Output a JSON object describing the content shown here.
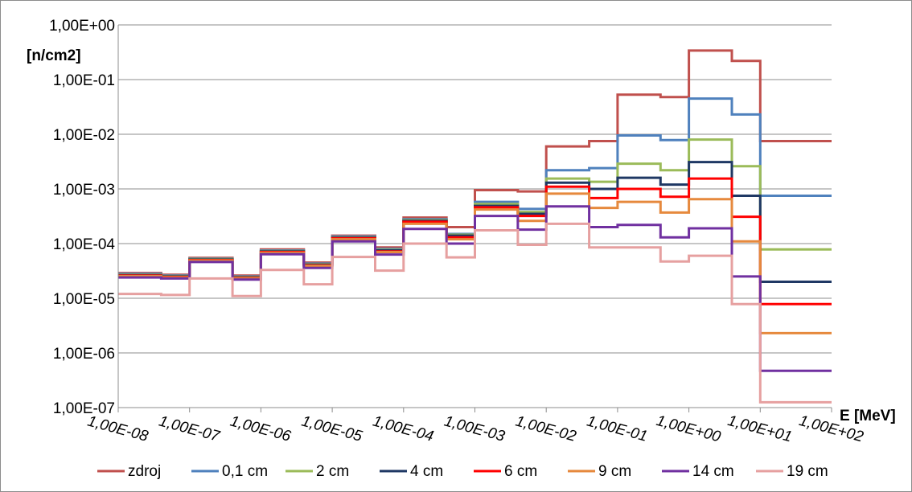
{
  "chart_data": {
    "type": "line",
    "step": true,
    "ylabel": "[n/cm2]",
    "xlabel": "E [MeV]",
    "x_scale": "log",
    "y_scale": "log",
    "xlim": [
      1e-08,
      100
    ],
    "ylim": [
      1e-07,
      1
    ],
    "y_ticks": [
      "1,00E+00",
      "1,00E-01",
      "1,00E-02",
      "1,00E-03",
      "1,00E-04",
      "1,00E-05",
      "1,00E-06",
      "1,00E-07"
    ],
    "x_ticks": [
      "1,00E-08",
      "1,00E-07",
      "1,00E-06",
      "1,00E-05",
      "1,00E-04",
      "1,00E-03",
      "1,00E-02",
      "1,00E-01",
      "1,00E+00",
      "1,00E+01",
      "1,00E+02"
    ],
    "grid": "horizontal",
    "legend_position": "bottom",
    "bin_edges": [
      1e-08,
      4e-08,
      1e-07,
      4e-07,
      1e-06,
      4e-06,
      1e-05,
      4e-05,
      0.0001,
      0.0004,
      0.001,
      0.004,
      0.01,
      0.04,
      0.1,
      0.4,
      1,
      4,
      10,
      100
    ],
    "series": [
      {
        "name": "zdroj",
        "color": "#C0504D",
        "values": [
          2.9e-05,
          2.7e-05,
          5.5e-05,
          2.6e-05,
          7.8e-05,
          4.5e-05,
          0.00014,
          8.5e-05,
          0.0003,
          0.0002,
          0.00095,
          0.0009,
          0.006,
          0.0075,
          0.053,
          0.048,
          0.34,
          0.22,
          0.0075
        ]
      },
      {
        "name": "0,1 cm",
        "color": "#4F81BD",
        "values": [
          2.8e-05,
          2.6e-05,
          5.3e-05,
          2.5e-05,
          7.5e-05,
          4.3e-05,
          0.000135,
          8e-05,
          0.00028,
          0.00015,
          0.00058,
          0.00043,
          0.0022,
          0.0024,
          0.0095,
          0.0078,
          0.045,
          0.023,
          0.00075
        ]
      },
      {
        "name": "2 cm",
        "color": "#9BBB59",
        "values": [
          2.7e-05,
          2.55e-05,
          5.2e-05,
          2.45e-05,
          7.3e-05,
          4.2e-05,
          0.00013,
          7.7e-05,
          0.00027,
          0.000145,
          0.00053,
          0.00038,
          0.00155,
          0.00135,
          0.0029,
          0.0022,
          0.008,
          0.0026,
          7.8e-05
        ]
      },
      {
        "name": "4 cm",
        "color": "#1F3864",
        "values": [
          2.65e-05,
          2.5e-05,
          5.1e-05,
          2.4e-05,
          7.2e-05,
          4.1e-05,
          0.000128,
          7.5e-05,
          0.00026,
          0.00014,
          0.00049,
          0.00035,
          0.0013,
          0.001,
          0.0016,
          0.0012,
          0.0031,
          0.00075,
          2e-05
        ]
      },
      {
        "name": "6 cm",
        "color": "#FF0000",
        "values": [
          2.6e-05,
          2.45e-05,
          5e-05,
          2.35e-05,
          7e-05,
          4e-05,
          0.000125,
          7.2e-05,
          0.00025,
          0.00013,
          0.00046,
          0.00032,
          0.0011,
          0.00068,
          0.001,
          0.00072,
          0.00155,
          0.00031,
          7.8e-06
        ]
      },
      {
        "name": "9 cm",
        "color": "#E6893D",
        "values": [
          2.55e-05,
          2.4e-05,
          4.9e-05,
          2.3e-05,
          6.8e-05,
          3.9e-05,
          0.00012,
          7e-05,
          0.00023,
          0.00012,
          0.00042,
          0.00026,
          0.00082,
          0.00045,
          0.00058,
          0.00037,
          0.00065,
          0.00011,
          2.3e-06
        ]
      },
      {
        "name": "14 cm",
        "color": "#7030A0",
        "values": [
          2.4e-05,
          2.3e-05,
          4.6e-05,
          2.2e-05,
          6.4e-05,
          3.6e-05,
          0.00011,
          6.3e-05,
          0.000185,
          0.0001,
          0.00032,
          0.00018,
          0.00048,
          0.0002,
          0.00022,
          0.00013,
          0.00019,
          2.5e-05,
          4.7e-07
        ]
      },
      {
        "name": "19 cm",
        "color": "#E6A0A0",
        "values": [
          1.2e-05,
          1.15e-05,
          2.3e-05,
          1.1e-05,
          3.3e-05,
          1.8e-05,
          5.7e-05,
          3.2e-05,
          0.0001,
          5.6e-05,
          0.000175,
          9.5e-05,
          0.00023,
          8.5e-05,
          8.5e-05,
          4.7e-05,
          6e-05,
          7.8e-06,
          1.25e-07
        ]
      }
    ]
  }
}
